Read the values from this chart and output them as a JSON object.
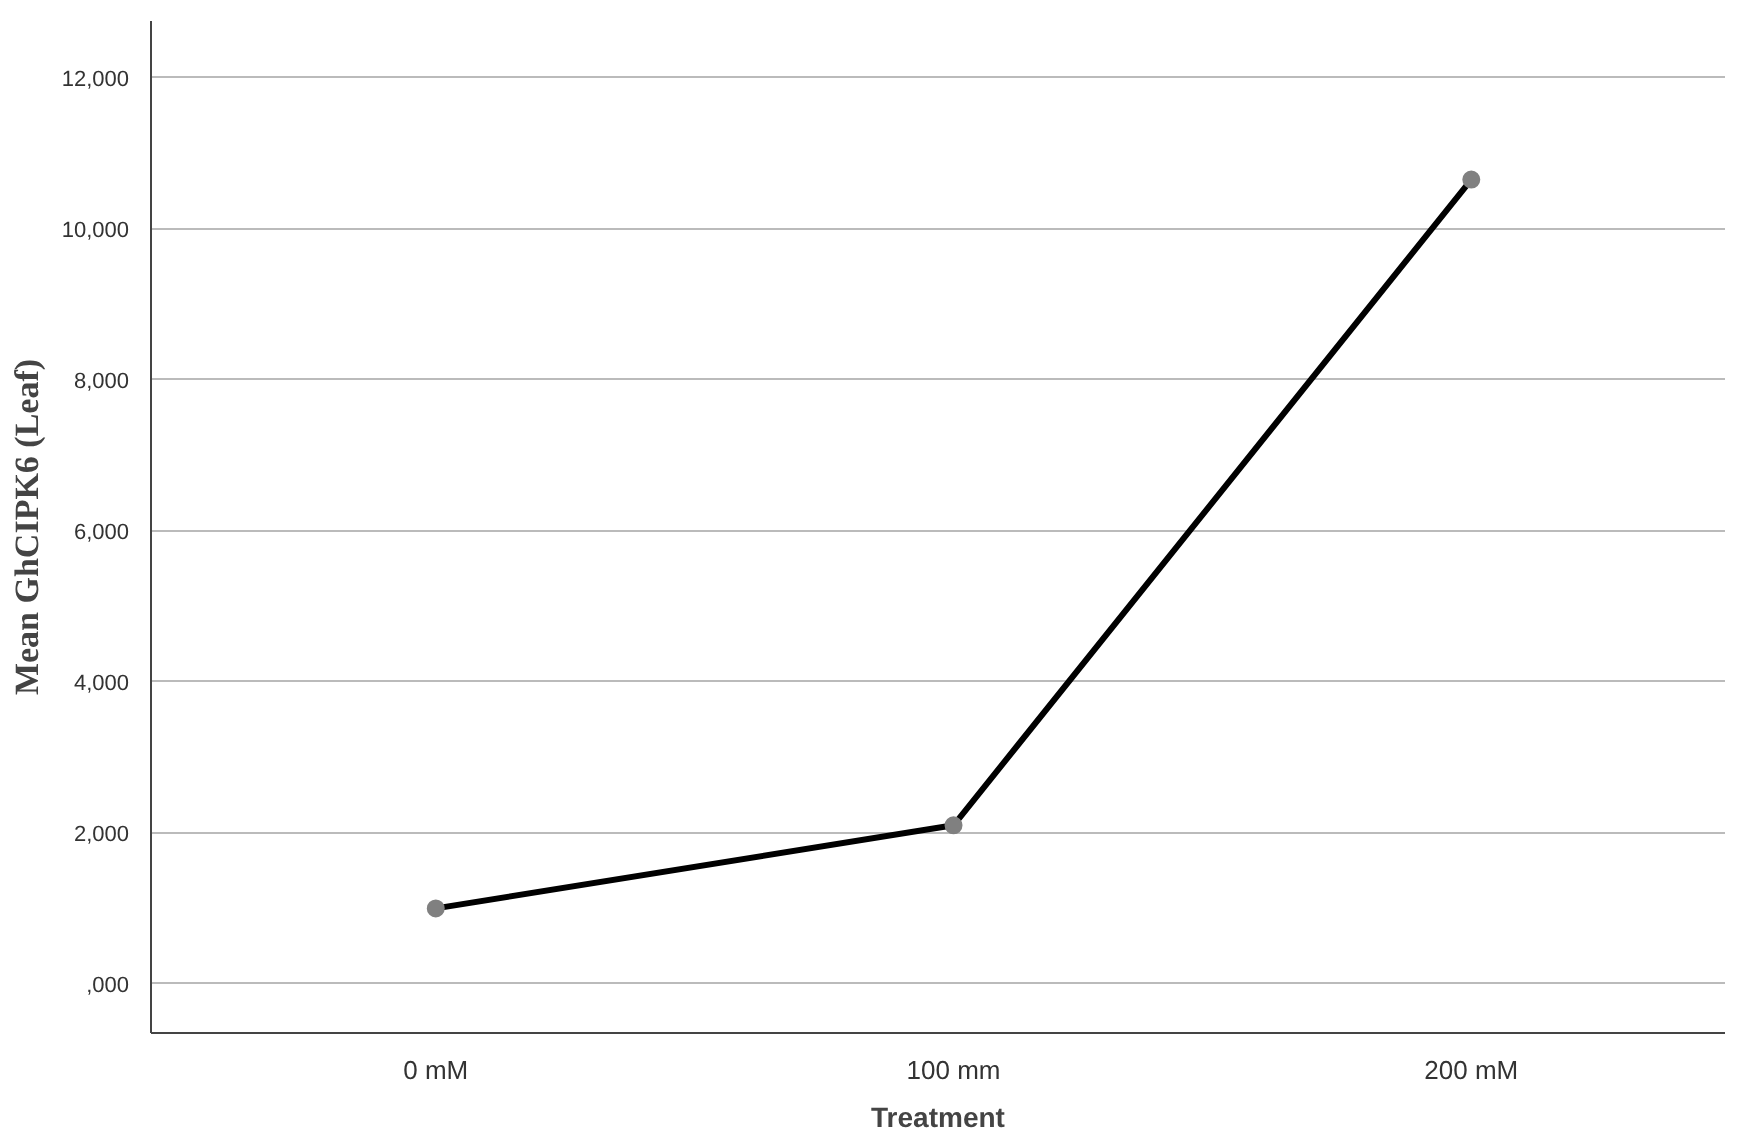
{
  "chart_data": {
    "type": "line",
    "xlabel": "Treatment",
    "ylabel": "Mean GhCIPK6 (Leaf)",
    "categories": [
      "0 mM",
      "100 mm",
      "200 mM"
    ],
    "series": [
      {
        "color": "#000000",
        "values": [
          1000,
          2100,
          10650
        ]
      }
    ],
    "ylim": [
      -650,
      12750
    ],
    "yticks": [
      {
        "value": 0,
        "label": ",000"
      },
      {
        "value": 2000,
        "label": "2,000"
      },
      {
        "value": 4000,
        "label": "4,000"
      },
      {
        "value": 6000,
        "label": "6,000"
      },
      {
        "value": 8000,
        "label": "8,000"
      },
      {
        "value": 10000,
        "label": "10,000"
      },
      {
        "value": 12000,
        "label": "12,000"
      }
    ],
    "grid": "y",
    "marker": "circle",
    "line_style": "solid"
  }
}
